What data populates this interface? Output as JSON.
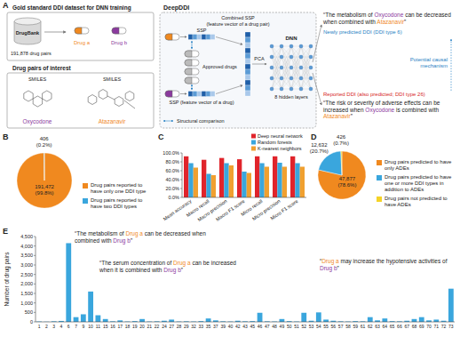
{
  "panel_labels": [
    "A",
    "B",
    "C",
    "D",
    "E"
  ],
  "diagram": {
    "training_title": "Gold standard DDI dataset for DNN training",
    "database": "DrugBank",
    "pair_count": "191,878 drug pairs",
    "pair": [
      {
        "name": "Drug a",
        "color": "#f0891f"
      },
      {
        "name": "Drug b",
        "color": "#8b3a9e"
      }
    ],
    "interest_title": "Drug pairs of interest",
    "smiles": [
      "SMILES",
      "SMILES"
    ],
    "drugs": [
      {
        "name": "Oxycodone",
        "color": "#8b3a9e"
      },
      {
        "name": "Atazanavir",
        "color": "#f0891f"
      }
    ],
    "model_title": "DeepDDI",
    "ssp_labels": [
      "SSP"
    ],
    "combined": "Combined SSP",
    "combined_sub": "(feature vector of a drug pair)",
    "pca": "PCA",
    "dnn": "DNN",
    "layers": "8 hidden layers",
    "approved": "Approved drugs",
    "ssp_sub": "SSP (feature vector of a drug)",
    "comparison": "Structural comparison",
    "outputs": [
      [
        {
          "text": "“The metabolism of "
        },
        {
          "text": "Oxycodone",
          "color": "#8b3a9e"
        },
        {
          "text": " can be decreased when combined with "
        },
        {
          "text": "Atazanavir",
          "color": "#f0891f"
        },
        {
          "text": "”"
        }
      ],
      [
        {
          "text": "“The risk or severity of adverse effects can be increased when "
        },
        {
          "text": "Oxycodone",
          "color": "#8b3a9e"
        },
        {
          "text": " is combined with "
        },
        {
          "text": "Atazanavir",
          "color": "#f0891f"
        },
        {
          "text": "”"
        }
      ]
    ],
    "new_label": "Newly predicted DDI (DDI type 6)",
    "mechanism": "Potential causal mechanism",
    "reported_label": "Reported DDI (also predicted; DDI type 26)"
  },
  "chart_data": [
    {
      "type": "pie",
      "categories": [
        "Drug pairs reported to have only one DDI type",
        "Drug pairs reported to have two DDI types"
      ],
      "values": [
        191472,
        406
      ],
      "value_labels": [
        "191,472 (99.8%)",
        "406 (0.2%)"
      ],
      "colors": [
        "#f0891f",
        "#3aa6dd"
      ],
      "data_labels": true,
      "legend": "right"
    },
    {
      "type": "bar",
      "categories": [
        "Mean accuracy",
        "Macro recall",
        "Macro precision",
        "Macro F1 score",
        "Micro recall",
        "Micro precision",
        "Micro F1 score"
      ],
      "series": [
        {
          "name": "Deep neural network",
          "color": "#e0242b",
          "values": [
            92.4,
            84.6,
            88.7,
            85.8,
            92.4,
            92.4,
            92.4
          ]
        },
        {
          "name": "Random forests",
          "color": "#3aa6dd",
          "values": [
            77,
            53,
            77,
            58,
            77,
            78,
            77
          ]
        },
        {
          "name": "K-nearest neighbors",
          "color": "#f0a030",
          "values": [
            67,
            50,
            72,
            55,
            69,
            69,
            69
          ]
        }
      ],
      "ylim": [
        0,
        100
      ],
      "yticks": [
        {
          "value": 0,
          "label": "0.0%"
        },
        {
          "value": 20,
          "label": "20.0%"
        },
        {
          "value": 40,
          "label": "40.0%"
        },
        {
          "value": 60,
          "label": "60.0%"
        },
        {
          "value": 80,
          "label": "80.0%"
        },
        {
          "value": 100,
          "label": "100.0%"
        }
      ],
      "grid": false,
      "legend": "top-right"
    },
    {
      "type": "pie",
      "categories": [
        "Drug pairs predicted to have only ADEs",
        "Drug pairs predicted to have one or more DDI types in addition to ADEs",
        "Drug pairs not predicted to have ADEs"
      ],
      "values": [
        47877,
        12632,
        426
      ],
      "value_labels": [
        "47,877 (78.6%)",
        "12,632 (20.7%)",
        "426 (0.7%)"
      ],
      "colors": [
        "#f0891f",
        "#3aa6dd",
        "#f5d327"
      ],
      "data_labels": true,
      "legend": "right"
    },
    {
      "type": "bar",
      "ylabel": "Number of drug pairs",
      "categories": [
        "1",
        "2",
        "3",
        "4",
        "6",
        "7",
        "9",
        "10",
        "11",
        "15",
        "16",
        "17",
        "18",
        "19",
        "20",
        "21",
        "22",
        "24",
        "27",
        "28",
        "29",
        "32",
        "33",
        "35",
        "37",
        "39",
        "40",
        "42",
        "43",
        "45",
        "46",
        "47",
        "48",
        "49",
        "50",
        "51",
        "52",
        "53",
        "54",
        "55",
        "56",
        "57",
        "58",
        "59",
        "61",
        "62",
        "63",
        "64",
        "65",
        "66",
        "67",
        "68",
        "69",
        "70",
        "71",
        "72",
        "73"
      ],
      "values": [
        20,
        10,
        30,
        50,
        4150,
        250,
        400,
        1600,
        350,
        150,
        30,
        80,
        20,
        40,
        150,
        20,
        30,
        60,
        120,
        20,
        30,
        20,
        40,
        180,
        80,
        30,
        20,
        60,
        30,
        40,
        480,
        30,
        20,
        150,
        40,
        20,
        480,
        60,
        500,
        120,
        60,
        30,
        20,
        40,
        30,
        250,
        80,
        180,
        40,
        30,
        60,
        150,
        250,
        80,
        120,
        60,
        1750
      ],
      "color": "#3aa6dd",
      "ylim": [
        0,
        4500
      ],
      "yticks": [
        0,
        500,
        {
          "value": 1000,
          "label": "1,000"
        },
        {
          "value": 1500,
          "label": "1,500"
        },
        {
          "value": 2000,
          "label": "2,000"
        },
        {
          "value": 2500,
          "label": "2,500"
        },
        {
          "value": 3000,
          "label": "3,000"
        },
        {
          "value": 3500,
          "label": "3,500"
        },
        {
          "value": 4000,
          "label": "4,000"
        },
        {
          "value": 4500,
          "label": "4,500"
        }
      ],
      "grid": false,
      "annotations": [
        {
          "parts": [
            {
              "text": "“The metabolism of "
            },
            {
              "text": "Drug a",
              "color": "#f0891f"
            },
            {
              "text": " can be decreased when combined with "
            },
            {
              "text": "Drug b",
              "color": "#8b3a9e"
            },
            {
              "text": "”"
            }
          ]
        },
        {
          "parts": [
            {
              "text": "“The serum concentration of "
            },
            {
              "text": "Drug a",
              "color": "#f0891f"
            },
            {
              "text": " can be increased when it is combined with "
            },
            {
              "text": "Drug b",
              "color": "#8b3a9e"
            },
            {
              "text": "”"
            }
          ]
        },
        {
          "parts": [
            {
              "text": "“"
            },
            {
              "text": "Drug a",
              "color": "#f0891f"
            },
            {
              "text": " may increase the hypotensive activities of "
            },
            {
              "text": "Drug b",
              "color": "#8b3a9e"
            },
            {
              "text": "”"
            }
          ]
        }
      ]
    }
  ]
}
